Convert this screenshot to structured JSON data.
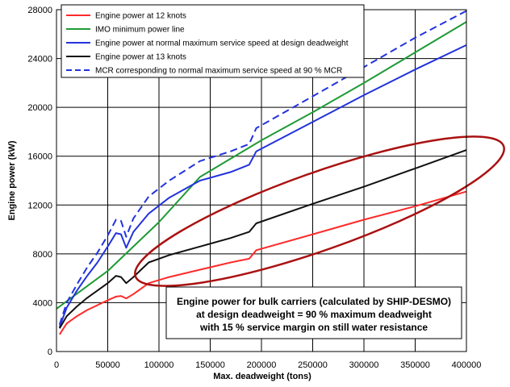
{
  "chart_data": {
    "type": "line",
    "xlabel": "Max. deadweight (tons)",
    "ylabel": "Engine power (kW)",
    "xlim": [
      0,
      400000
    ],
    "ylim": [
      0,
      28000
    ],
    "x_ticks": [
      0,
      50000,
      100000,
      150000,
      200000,
      250000,
      300000,
      350000,
      400000
    ],
    "y_ticks": [
      0,
      4000,
      8000,
      12000,
      16000,
      20000,
      24000,
      28000
    ],
    "grid": true,
    "legend_position": "top-left",
    "series": [
      {
        "name": "Engine power at 12 knots",
        "color": "#ff2a2a",
        "dash": "solid",
        "points": [
          [
            3000,
            1400
          ],
          [
            10000,
            2300
          ],
          [
            20000,
            2900
          ],
          [
            30000,
            3400
          ],
          [
            40000,
            3800
          ],
          [
            50000,
            4200
          ],
          [
            58000,
            4500
          ],
          [
            63000,
            4550
          ],
          [
            68000,
            4350
          ],
          [
            75000,
            4700
          ],
          [
            90000,
            5600
          ],
          [
            110000,
            6100
          ],
          [
            140000,
            6700
          ],
          [
            170000,
            7300
          ],
          [
            188000,
            7600
          ],
          [
            195000,
            8300
          ],
          [
            250000,
            9600
          ],
          [
            300000,
            10800
          ],
          [
            350000,
            11900
          ],
          [
            400000,
            13100
          ]
        ]
      },
      {
        "name": "IMO minimum power line",
        "color": "#1f9a35",
        "dash": "solid",
        "points": [
          [
            0,
            3500
          ],
          [
            50000,
            6600
          ],
          [
            100000,
            10600
          ],
          [
            140000,
            14300
          ],
          [
            200000,
            17300
          ],
          [
            250000,
            19600
          ],
          [
            300000,
            22000
          ],
          [
            350000,
            24500
          ],
          [
            400000,
            27000
          ]
        ]
      },
      {
        "name": "Engine power at normal maximum service speed at design deadweight",
        "color": "#2233dd",
        "dash": "solid",
        "points": [
          [
            3000,
            2000
          ],
          [
            10000,
            3600
          ],
          [
            20000,
            5000
          ],
          [
            30000,
            6200
          ],
          [
            40000,
            7300
          ],
          [
            50000,
            8600
          ],
          [
            58000,
            9700
          ],
          [
            63000,
            9600
          ],
          [
            68000,
            8500
          ],
          [
            75000,
            9800
          ],
          [
            90000,
            11300
          ],
          [
            110000,
            12600
          ],
          [
            140000,
            14000
          ],
          [
            170000,
            14700
          ],
          [
            188000,
            15300
          ],
          [
            195000,
            16400
          ],
          [
            250000,
            18800
          ],
          [
            300000,
            21000
          ],
          [
            350000,
            23100
          ],
          [
            400000,
            25100
          ]
        ]
      },
      {
        "name": "Engine power at 13 knots",
        "color": "#111111",
        "dash": "solid",
        "points": [
          [
            3000,
            1900
          ],
          [
            10000,
            2900
          ],
          [
            20000,
            3700
          ],
          [
            30000,
            4400
          ],
          [
            40000,
            5000
          ],
          [
            50000,
            5600
          ],
          [
            58000,
            6200
          ],
          [
            63000,
            6100
          ],
          [
            68000,
            5600
          ],
          [
            75000,
            6100
          ],
          [
            90000,
            7300
          ],
          [
            110000,
            7900
          ],
          [
            140000,
            8600
          ],
          [
            170000,
            9300
          ],
          [
            188000,
            9800
          ],
          [
            195000,
            10500
          ],
          [
            250000,
            12100
          ],
          [
            300000,
            13500
          ],
          [
            350000,
            15000
          ],
          [
            400000,
            16500
          ]
        ]
      },
      {
        "name": "MCR corresponding to normal maximum service speed at 90 % MCR",
        "color": "#2233dd",
        "dash": "dashed",
        "points": [
          [
            3000,
            2200
          ],
          [
            10000,
            4000
          ],
          [
            20000,
            5500
          ],
          [
            30000,
            6900
          ],
          [
            40000,
            8100
          ],
          [
            50000,
            9500
          ],
          [
            58000,
            10800
          ],
          [
            63000,
            10700
          ],
          [
            68000,
            9400
          ],
          [
            75000,
            10900
          ],
          [
            90000,
            12700
          ],
          [
            110000,
            14000
          ],
          [
            140000,
            15600
          ],
          [
            170000,
            16400
          ],
          [
            188000,
            17000
          ],
          [
            195000,
            18300
          ],
          [
            250000,
            20900
          ],
          [
            300000,
            23300
          ],
          [
            350000,
            25700
          ],
          [
            400000,
            27900
          ]
        ]
      }
    ],
    "annotation": {
      "lines": [
        "Engine power for bulk carriers (calculated by SHIP-DESMO)",
        "at design deadweight = 90 % maximum deadweight",
        "with 15 % service margin on still water resistance"
      ]
    },
    "highlight_ellipse": {
      "color": "#aa1111"
    }
  }
}
